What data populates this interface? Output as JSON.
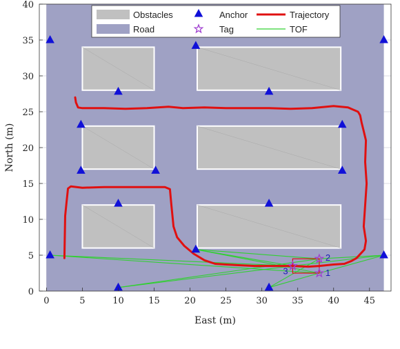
{
  "chart_data": {
    "type": "scatter",
    "xlabel": "East (m)",
    "ylabel": "North (m)",
    "xlim": [
      -1,
      48
    ],
    "ylim": [
      0,
      40
    ],
    "xticks": [
      0,
      5,
      10,
      15,
      20,
      25,
      30,
      35,
      40,
      45
    ],
    "yticks": [
      0,
      5,
      10,
      15,
      20,
      25,
      30,
      35,
      40
    ],
    "grid": true,
    "legend_position": "top-center",
    "colors": {
      "road": "#9fa1c4",
      "obstacle": "#c0c0c0",
      "obstacle_edge": "#ffffff",
      "anchor": "#1010d8",
      "tag": "#a040d0",
      "trajectory": "#e01010",
      "tof": "#30d030"
    },
    "legend": [
      {
        "label": "Obstacles",
        "kind": "obstacle-patch"
      },
      {
        "label": "Road",
        "kind": "road-patch"
      },
      {
        "label": "Anchor",
        "kind": "anchor-marker"
      },
      {
        "label": "Tag",
        "kind": "tag-marker"
      },
      {
        "label": "Trajectory",
        "kind": "trajectory-line"
      },
      {
        "label": "TOF",
        "kind": "tof-line"
      }
    ],
    "road": {
      "x0": 0,
      "x1": 47,
      "y0": 0,
      "y1": 40
    },
    "obstacles": [
      {
        "x0": 5,
        "x1": 15,
        "y0": 28,
        "y1": 34
      },
      {
        "x0": 21,
        "x1": 41,
        "y0": 28,
        "y1": 34
      },
      {
        "x0": 5,
        "x1": 15,
        "y0": 17,
        "y1": 23
      },
      {
        "x0": 21,
        "x1": 41,
        "y0": 17,
        "y1": 23
      },
      {
        "x0": 5,
        "x1": 15,
        "y0": 6,
        "y1": 12
      },
      {
        "x0": 21,
        "x1": 41,
        "y0": 6,
        "y1": 12
      }
    ],
    "anchors": [
      [
        0.5,
        35
      ],
      [
        20.8,
        34.2
      ],
      [
        47,
        35
      ],
      [
        10,
        27.8
      ],
      [
        31,
        27.8
      ],
      [
        4.8,
        23.2
      ],
      [
        41.2,
        23.2
      ],
      [
        4.8,
        16.8
      ],
      [
        15.2,
        16.8
      ],
      [
        41.2,
        16.8
      ],
      [
        10,
        12.2
      ],
      [
        31,
        12.2
      ],
      [
        0.5,
        5
      ],
      [
        20.8,
        5.8
      ],
      [
        47,
        5
      ],
      [
        10,
        0.5
      ],
      [
        31,
        0.5
      ]
    ],
    "tags": [
      {
        "x": 38,
        "y": 4.5,
        "label": "2"
      },
      {
        "x": 38,
        "y": 2.5,
        "label": "1"
      },
      {
        "x": 34.3,
        "y": 3.5,
        "label": "3"
      }
    ],
    "tag_box": {
      "x0": 34.3,
      "x1": 38,
      "y0": 2.5,
      "y1": 4.5
    },
    "tof_links": [
      [
        [
          0.5,
          5
        ],
        [
          34.3,
          3.5
        ]
      ],
      [
        [
          0.5,
          5
        ],
        [
          38,
          2.5
        ]
      ],
      [
        [
          20.8,
          5.8
        ],
        [
          34.3,
          3.5
        ]
      ],
      [
        [
          20.8,
          5.8
        ],
        [
          38,
          2.5
        ]
      ],
      [
        [
          20.8,
          5.8
        ],
        [
          38,
          4.5
        ]
      ],
      [
        [
          47,
          5
        ],
        [
          38,
          4.5
        ]
      ],
      [
        [
          47,
          5
        ],
        [
          38,
          2.5
        ]
      ],
      [
        [
          47,
          5
        ],
        [
          34.3,
          3.5
        ]
      ],
      [
        [
          10,
          0.5
        ],
        [
          34.3,
          3.5
        ]
      ],
      [
        [
          10,
          0.5
        ],
        [
          38,
          4.5
        ]
      ],
      [
        [
          31,
          0.5
        ],
        [
          38,
          4.5
        ]
      ],
      [
        [
          31,
          0.5
        ],
        [
          38,
          2.5
        ]
      ]
    ],
    "trajectory": [
      [
        2.5,
        4.6
      ],
      [
        2.6,
        10.5
      ],
      [
        2.8,
        12.5
      ],
      [
        3.0,
        14.3
      ],
      [
        3.4,
        14.6
      ],
      [
        5,
        14.4
      ],
      [
        8,
        14.5
      ],
      [
        11,
        14.5
      ],
      [
        14,
        14.5
      ],
      [
        16.5,
        14.5
      ],
      [
        17.2,
        14.2
      ],
      [
        17.4,
        12
      ],
      [
        17.7,
        9
      ],
      [
        18.2,
        7.5
      ],
      [
        19.2,
        6.3
      ],
      [
        20.5,
        5.2
      ],
      [
        22,
        4.3
      ],
      [
        23.5,
        3.8
      ],
      [
        25,
        3.7
      ],
      [
        27,
        3.6
      ],
      [
        29,
        3.5
      ],
      [
        31,
        3.5
      ],
      [
        33,
        3.5
      ],
      [
        34.3,
        3.5
      ],
      [
        36.5,
        3.4
      ],
      [
        38,
        3.5
      ],
      [
        40,
        3.7
      ],
      [
        41.5,
        3.8
      ],
      [
        42.5,
        4.2
      ],
      [
        43.2,
        4.6
      ],
      [
        44.3,
        5.8
      ],
      [
        44.5,
        7.0
      ],
      [
        44.2,
        9.0
      ],
      [
        44.4,
        12
      ],
      [
        44.6,
        15
      ],
      [
        44.4,
        18
      ],
      [
        44.5,
        21
      ],
      [
        44.2,
        22.3
      ],
      [
        43.9,
        23.5
      ],
      [
        43.7,
        24.5
      ],
      [
        43.4,
        25.0
      ],
      [
        42,
        25.6
      ],
      [
        40,
        25.8
      ],
      [
        37,
        25.5
      ],
      [
        34,
        25.4
      ],
      [
        31,
        25.5
      ],
      [
        28,
        25.5
      ],
      [
        25,
        25.5
      ],
      [
        22,
        25.6
      ],
      [
        19,
        25.5
      ],
      [
        17,
        25.7
      ],
      [
        14,
        25.5
      ],
      [
        11,
        25.4
      ],
      [
        8,
        25.5
      ],
      [
        5,
        25.5
      ],
      [
        4.4,
        25.6
      ],
      [
        4.1,
        26.3
      ],
      [
        4.0,
        27
      ]
    ]
  }
}
